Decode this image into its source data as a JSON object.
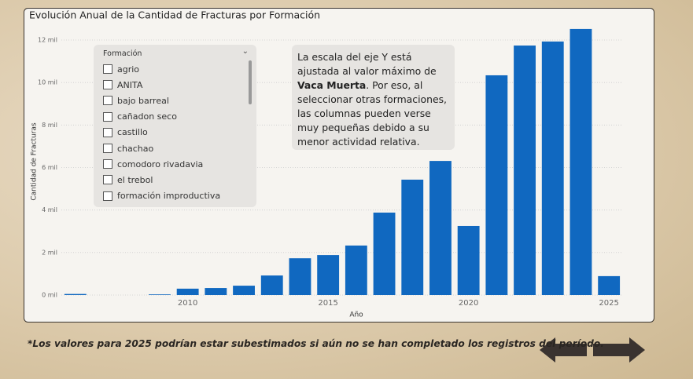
{
  "chart_data": {
    "type": "bar",
    "title": "Evolución Anual de la Cantidad de Fracturas por Formación",
    "x_label": "Año",
    "y_label": "Cantidad de Fracturas",
    "x": [
      2006,
      2009,
      2010,
      2011,
      2012,
      2013,
      2014,
      2015,
      2016,
      2017,
      2018,
      2019,
      2020,
      2021,
      2022,
      2023,
      2024,
      2025
    ],
    "values": [
      50,
      30,
      300,
      330,
      440,
      920,
      1730,
      1880,
      2330,
      3880,
      5430,
      6310,
      3250,
      10340,
      11740,
      11930,
      12520,
      890
    ],
    "color": "#1068c0",
    "xlim": [
      2005.5,
      2025.5
    ],
    "xticks": [
      2010,
      2015,
      2020,
      2025
    ],
    "ylim": [
      0,
      12000
    ],
    "yticks": [
      {
        "value": 0,
        "label": "0 mil"
      },
      {
        "value": 2000,
        "label": "2 mil"
      },
      {
        "value": 4000,
        "label": "4 mil"
      },
      {
        "value": 6000,
        "label": "6 mil"
      },
      {
        "value": 8000,
        "label": "8 mil"
      },
      {
        "value": 10000,
        "label": "10 mil"
      },
      {
        "value": 12000,
        "label": "12 mil"
      }
    ],
    "grid": true
  },
  "slicer": {
    "title": "Formación",
    "items": [
      "agrio",
      "ANITA",
      "bajo barreal",
      "cañadon seco",
      "castillo",
      "chachao",
      "comodoro rivadavia",
      "el trebol",
      "formación improductiva"
    ]
  },
  "note": [
    "La escala del eje Y está ajustada al valor máximo de ",
    "Vaca Muerta",
    ". Por eso, al seleccionar otras formaciones, las columnas pueden verse muy pequeñas debido a su menor actividad relativa."
  ],
  "footnote": "*Los valores para 2025 podrían estar subestimados si aún no se han completado los registros del período."
}
